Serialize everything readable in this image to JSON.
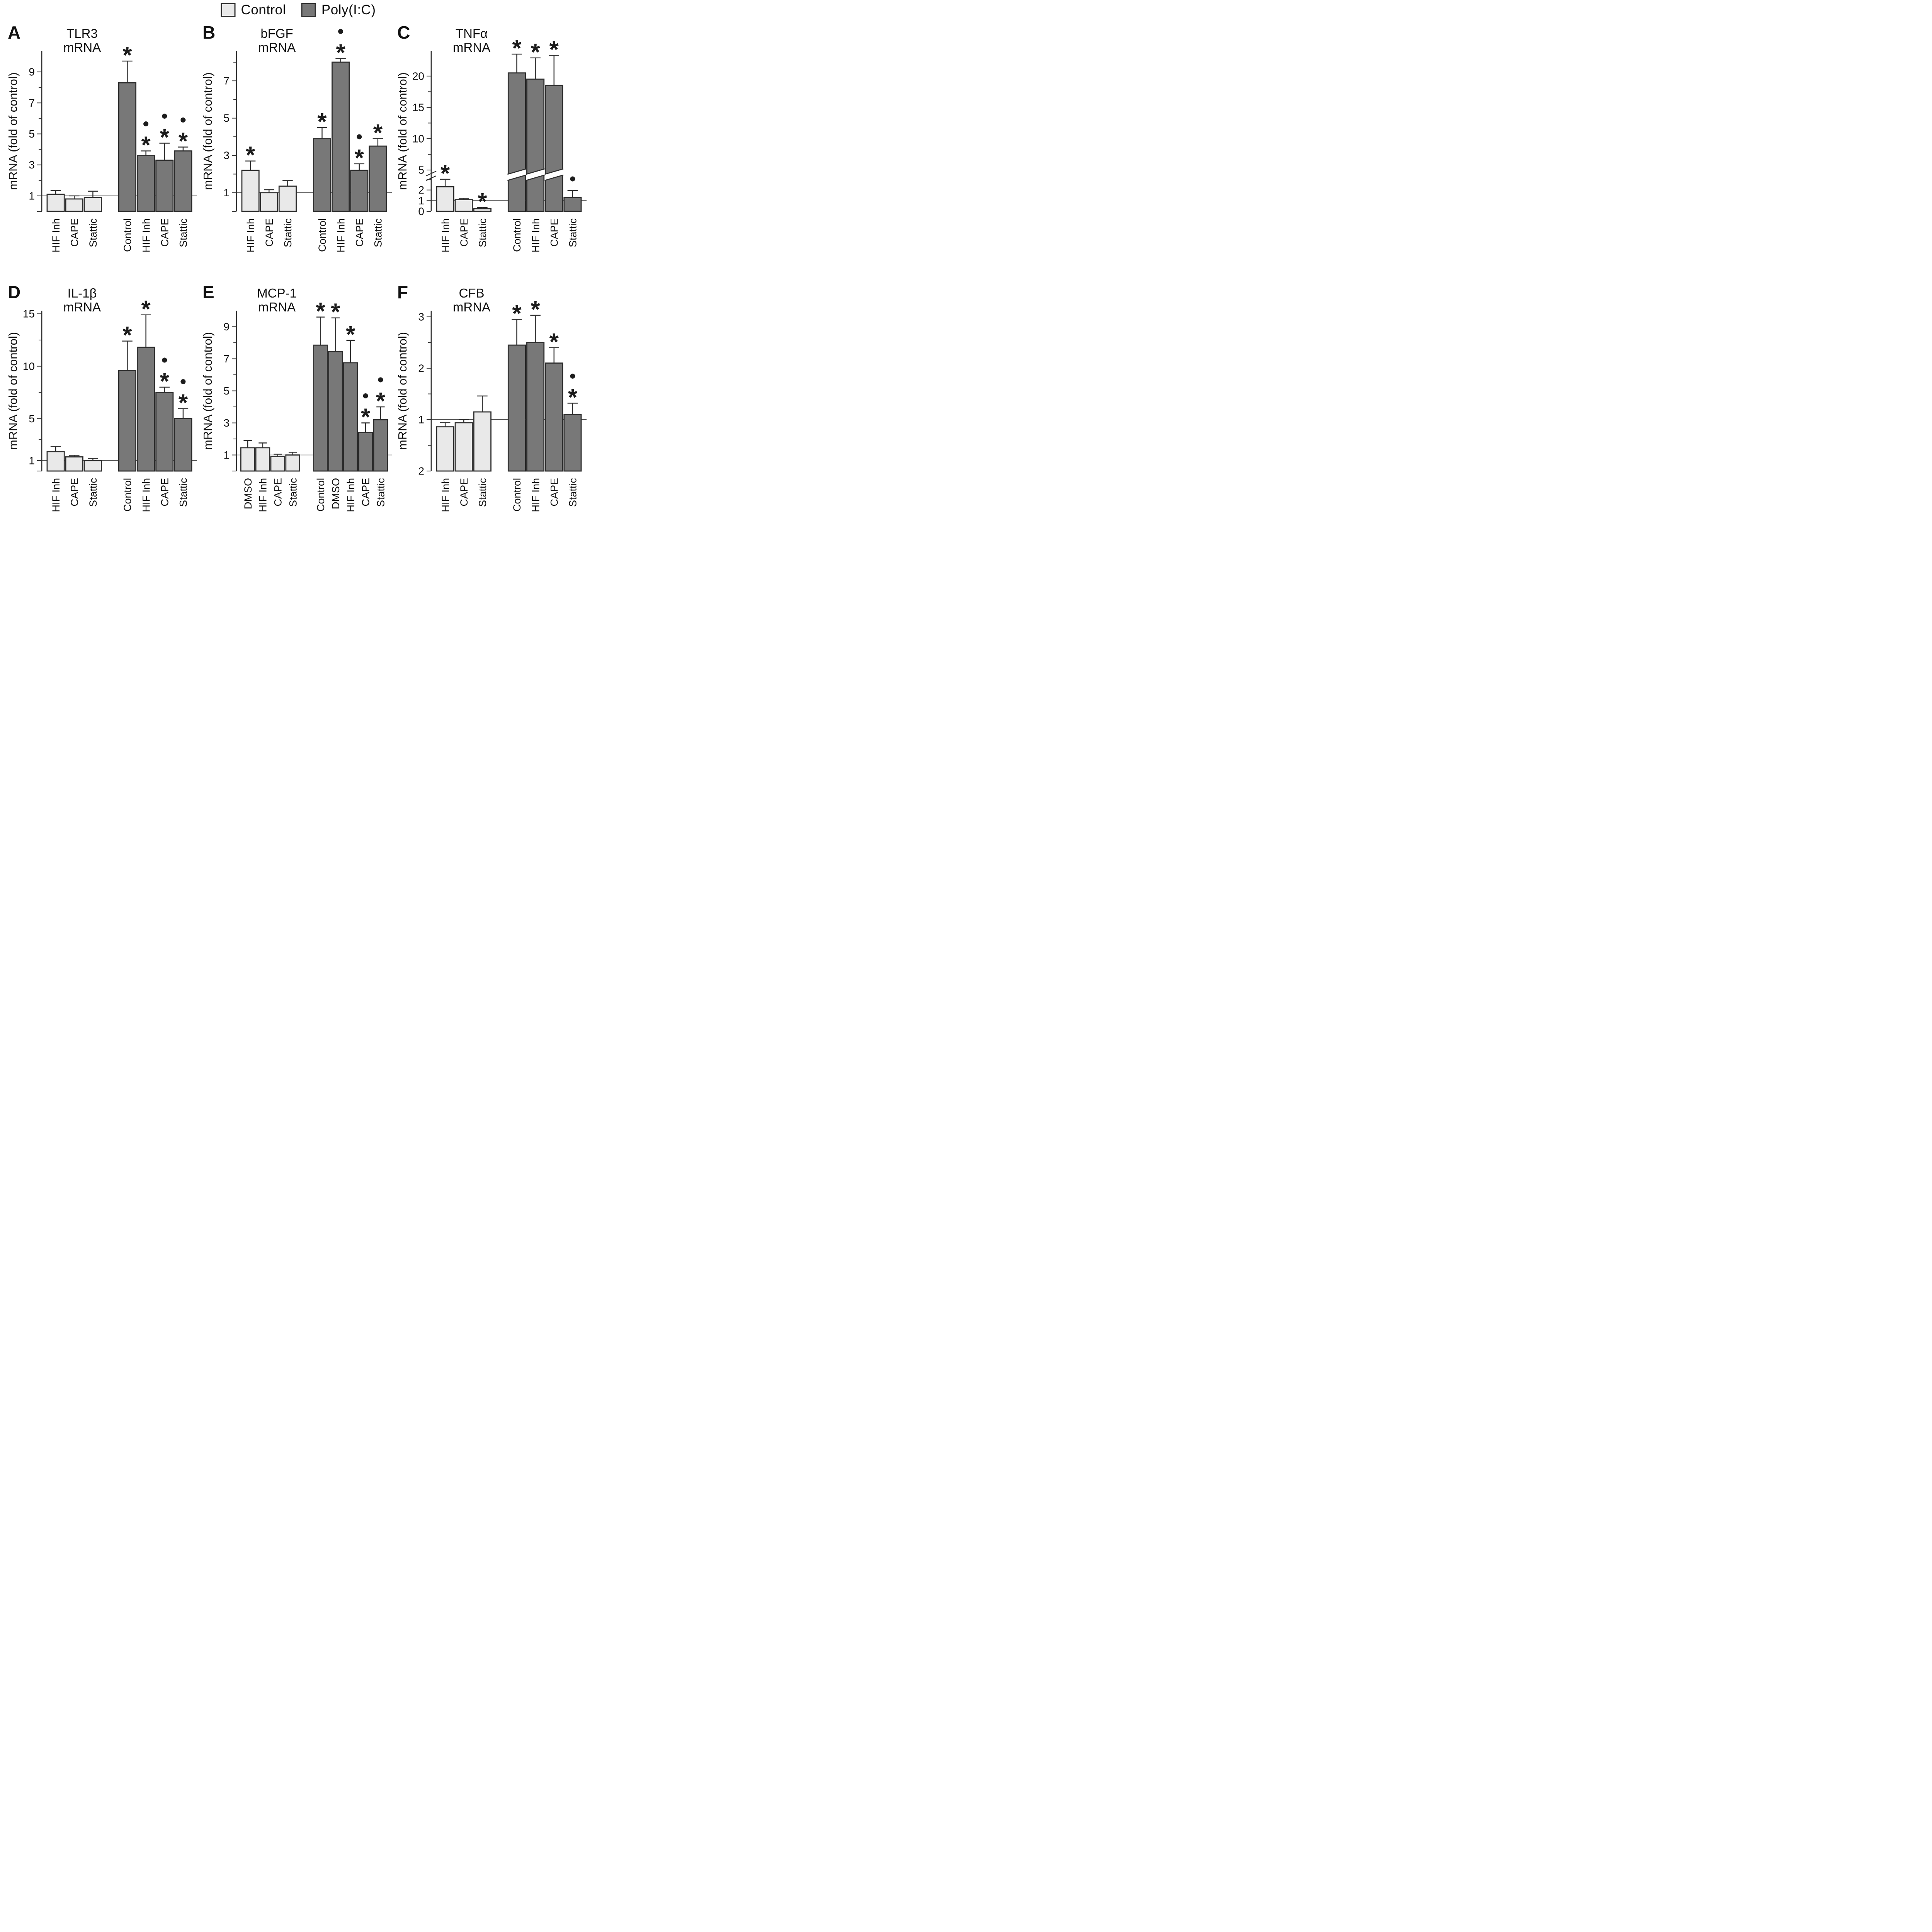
{
  "legend": {
    "items": [
      {
        "label": "Control",
        "color": "#e9e9e9"
      },
      {
        "label": "Poly(I:C)",
        "color": "#787878"
      }
    ]
  },
  "style": {
    "bar_light": "#e9e9e9",
    "bar_dark": "#787878",
    "stroke": "#2d2d2d",
    "text": "#111111",
    "annotation": "#1c1c1c",
    "background": "#ffffff"
  },
  "chart_data": [
    {
      "type": "bar",
      "panel_letter": "A",
      "title_lines": [
        "TLR3",
        "mRNA"
      ],
      "ylabel": "mRNA (fold of control)",
      "yticks": [
        1,
        3,
        5,
        7,
        9
      ],
      "yticks_minor": [
        2,
        4,
        6,
        8
      ],
      "ylim": [
        0,
        10.35
      ],
      "baseline": 1,
      "group_split": 3,
      "categories": [
        "HIF Inh",
        "CAPE",
        "Stattic",
        "Control",
        "HIF Inh",
        "CAPE",
        "Stattic"
      ],
      "values": [
        1.1,
        0.8,
        0.9,
        8.3,
        3.6,
        3.3,
        3.9
      ],
      "errors": [
        0.25,
        0.2,
        0.4,
        1.4,
        0.3,
        1.1,
        0.25
      ],
      "annotations": [
        [],
        [],
        [],
        [
          "star"
        ],
        [
          "star",
          "dot"
        ],
        [
          "star",
          "dot"
        ],
        [
          "star",
          "dot"
        ]
      ]
    },
    {
      "type": "bar",
      "panel_letter": "B",
      "title_lines": [
        "bFGF",
        "mRNA"
      ],
      "ylabel": "mRNA (fold of control)",
      "yticks": [
        1,
        3,
        5,
        7
      ],
      "yticks_minor": [
        2,
        4,
        6,
        8
      ],
      "ylim": [
        0,
        8.6
      ],
      "baseline": 1,
      "group_split": 3,
      "categories": [
        "HIF Inh",
        "CAPE",
        "Stattic",
        "Control",
        "HIF Inh",
        "CAPE",
        "Stattic"
      ],
      "values": [
        2.2,
        1.0,
        1.35,
        3.9,
        8.0,
        2.2,
        3.5
      ],
      "errors": [
        0.5,
        0.16,
        0.3,
        0.6,
        0.2,
        0.35,
        0.4
      ],
      "annotations": [
        [
          "star"
        ],
        [],
        [],
        [
          "star"
        ],
        [
          "star",
          "dot"
        ],
        [
          "star",
          "dot"
        ],
        [
          "star"
        ]
      ]
    },
    {
      "type": "bar",
      "panel_letter": "C",
      "title_lines": [
        "TNFα",
        "mRNA"
      ],
      "ylabel": "mRNA (fold of control)",
      "baseline": 1,
      "axis_break": {
        "lower_ticks": [
          0,
          1,
          2
        ],
        "lower_max": 3,
        "upper_min": 5,
        "upper_max": 24,
        "upper_ticks": [
          5,
          10,
          15,
          20
        ],
        "upper_ticks_minor": [
          7.5,
          12.5,
          17.5
        ]
      },
      "group_split": 3,
      "categories": [
        "HIF Inh",
        "CAPE",
        "Stattic",
        "Control",
        "HIF Inh",
        "CAPE",
        "Stattic"
      ],
      "values": [
        2.3,
        1.1,
        0.25,
        20.5,
        19.5,
        18.5,
        1.3
      ],
      "errors": [
        0.7,
        0.12,
        0.12,
        3.0,
        3.4,
        4.8,
        0.65
      ],
      "annotations": [
        [
          "star"
        ],
        [],
        [
          "star"
        ],
        [
          "star"
        ],
        [
          "star"
        ],
        [
          "star"
        ],
        [
          "dot"
        ]
      ]
    },
    {
      "type": "bar",
      "panel_letter": "D",
      "title_lines": [
        "IL-1β",
        "mRNA"
      ],
      "ylabel": "mRNA (fold of control)",
      "yticks": [
        1,
        5,
        10,
        15
      ],
      "yticks_minor": [
        3,
        7.5,
        12.5
      ],
      "ylim": [
        0,
        15.3
      ],
      "baseline": 1,
      "group_split": 3,
      "categories": [
        "HIF Inh",
        "CAPE",
        "Stattic",
        "Control",
        "HIF Inh",
        "CAPE",
        "Stattic"
      ],
      "values": [
        1.85,
        1.35,
        1.0,
        9.6,
        11.8,
        7.5,
        5.0
      ],
      "errors": [
        0.5,
        0.15,
        0.2,
        2.8,
        3.1,
        0.5,
        0.95
      ],
      "annotations": [
        [],
        [],
        [],
        [
          "star"
        ],
        [
          "star"
        ],
        [
          "star",
          "dot"
        ],
        [
          "star",
          "dot"
        ]
      ]
    },
    {
      "type": "bar",
      "panel_letter": "E",
      "title_lines": [
        "MCP-1",
        "mRNA"
      ],
      "ylabel": "mRNA (fold of control)",
      "yticks": [
        1,
        3,
        5,
        7,
        9
      ],
      "yticks_minor": [
        2,
        4,
        6,
        8
      ],
      "ylim": [
        0,
        10.0
      ],
      "baseline": 1,
      "group_split": 4,
      "categories": [
        "DMSO",
        "HIF Inh",
        "CAPE",
        "Stattic",
        "Control",
        "DMSO",
        "HIF Inh",
        "CAPE",
        "Stattic"
      ],
      "values": [
        1.45,
        1.45,
        0.9,
        1.0,
        7.85,
        7.45,
        6.75,
        2.4,
        3.2
      ],
      "errors": [
        0.45,
        0.3,
        0.15,
        0.17,
        1.75,
        2.1,
        1.4,
        0.6,
        0.8
      ],
      "annotations": [
        [],
        [],
        [],
        [],
        [
          "star"
        ],
        [
          "star"
        ],
        [
          "star"
        ],
        [
          "star",
          "dot"
        ],
        [
          "star",
          "dot"
        ]
      ]
    },
    {
      "type": "bar",
      "panel_letter": "F",
      "title_lines": [
        "CFB",
        "mRNA"
      ],
      "ylabel": "mRNA (fold of control)",
      "yticks": [
        1,
        2,
        3
      ],
      "yticks_minor": [
        0.5,
        1.5,
        2.5
      ],
      "ylim": [
        0,
        3.12
      ],
      "bottom_tick_label": "2",
      "baseline": 1,
      "group_split": 3,
      "categories": [
        "HIF Inh",
        "CAPE",
        "Stattic",
        "Control",
        "HIF Inh",
        "CAPE",
        "Stattic"
      ],
      "values": [
        0.86,
        0.94,
        1.15,
        2.45,
        2.5,
        2.1,
        1.1
      ],
      "errors": [
        0.08,
        0.06,
        0.31,
        0.5,
        0.53,
        0.3,
        0.22
      ],
      "annotations": [
        [],
        [],
        [],
        [
          "star"
        ],
        [
          "star"
        ],
        [
          "star"
        ],
        [
          "star",
          "dot"
        ]
      ]
    }
  ]
}
